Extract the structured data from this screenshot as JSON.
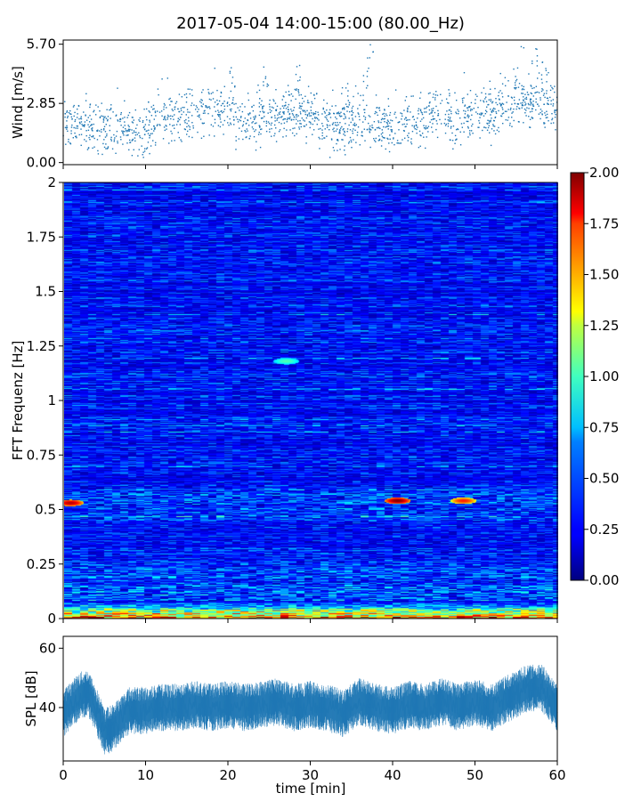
{
  "title": "2017-05-04 14:00-15:00 (80.00_Hz)",
  "chart_data": [
    {
      "type": "scatter",
      "panel": "wind",
      "ylabel": "Wind [m/s]",
      "xlabel": "",
      "xlim": [
        0,
        60
      ],
      "ylim": [
        0,
        5.7
      ],
      "yticks": [
        0.0,
        2.85,
        5.7
      ],
      "ytick_labels": [
        "0.00",
        "2.85",
        "5.70"
      ],
      "color": "#1f77b4",
      "trend": {
        "x": [
          0,
          2,
          4,
          6,
          8,
          10,
          12,
          14,
          16,
          18,
          20,
          22,
          24,
          26,
          28,
          30,
          32,
          34,
          36,
          38,
          40,
          42,
          44,
          46,
          48,
          50,
          52,
          54,
          56,
          58,
          60
        ],
        "y": [
          1.9,
          1.6,
          1.7,
          1.5,
          1.4,
          1.6,
          2.2,
          2.3,
          2.4,
          2.5,
          2.5,
          1.9,
          2.3,
          2.2,
          2.5,
          2.3,
          1.8,
          1.8,
          2.0,
          1.7,
          1.6,
          1.9,
          2.1,
          2.6,
          2.0,
          2.4,
          2.4,
          2.8,
          3.0,
          3.0,
          2.6
        ]
      },
      "spread": 0.6,
      "peaks": [
        {
          "x": 24.5,
          "y": 4.6
        },
        {
          "x": 28.5,
          "y": 5.1
        },
        {
          "x": 37.3,
          "y": 5.7
        },
        {
          "x": 20.5,
          "y": 4.8
        },
        {
          "x": 36.6,
          "y": 4.4
        },
        {
          "x": 57.2,
          "y": 5.5
        },
        {
          "x": 58.5,
          "y": 5.2
        },
        {
          "x": 54.8,
          "y": 4.7
        },
        {
          "x": 34.2,
          "y": 4.2
        }
      ]
    },
    {
      "type": "heatmap",
      "panel": "spectrogram",
      "ylabel": "FFT Frequenz [Hz]",
      "xlabel": "",
      "xlim": [
        0,
        60
      ],
      "ylim": [
        0,
        2
      ],
      "yticks": [
        0,
        0.25,
        0.5,
        0.75,
        1,
        1.25,
        1.5,
        1.75,
        2
      ],
      "ytick_labels": [
        "0",
        "0.25",
        "0.5",
        "0.75",
        "1",
        "1.25",
        "1.5",
        "1.75",
        "2"
      ],
      "colormap": "jet",
      "clim": [
        0,
        2
      ],
      "colorbar_ticks": [
        "0.00",
        "0.25",
        "0.50",
        "0.75",
        "1.00",
        "1.25",
        "1.50",
        "1.75",
        "2.00"
      ],
      "background_level": 0.25,
      "low_frequency_level": 1.6,
      "hotspots": [
        {
          "t": 40.5,
          "f": 0.54,
          "value": 2.0
        },
        {
          "t": 48.5,
          "f": 0.54,
          "value": 1.7
        },
        {
          "t": 0.8,
          "f": 0.53,
          "value": 1.9
        },
        {
          "t": 27,
          "f": 1.18,
          "value": 0.9
        }
      ]
    },
    {
      "type": "area",
      "panel": "spl",
      "ylabel": "SPL [dB]",
      "xlabel": "time [min]",
      "xlim": [
        0,
        60
      ],
      "ylim": [
        22,
        64
      ],
      "yticks": [
        40,
        60
      ],
      "ytick_labels": [
        "40",
        "60"
      ],
      "xticks": [
        0,
        10,
        20,
        30,
        40,
        50,
        60
      ],
      "xtick_labels": [
        "0",
        "10",
        "20",
        "30",
        "40",
        "50",
        "60"
      ],
      "color": "#1f77b4",
      "median": {
        "x": [
          0,
          1,
          2,
          3,
          4,
          5,
          6,
          7,
          8,
          10,
          12,
          14,
          16,
          18,
          20,
          22,
          24,
          26,
          28,
          30,
          32,
          34,
          36,
          38,
          40,
          42,
          44,
          46,
          48,
          50,
          52,
          54,
          56,
          58,
          60
        ],
        "y": [
          38,
          41,
          44,
          45,
          39,
          32,
          33,
          36,
          39,
          39,
          40,
          40,
          41,
          40,
          41,
          40,
          41,
          42,
          40,
          41,
          40,
          38,
          42,
          40,
          39,
          41,
          40,
          42,
          40,
          42,
          40,
          43,
          46,
          47,
          40
        ]
      },
      "spread_db": 5
    }
  ]
}
